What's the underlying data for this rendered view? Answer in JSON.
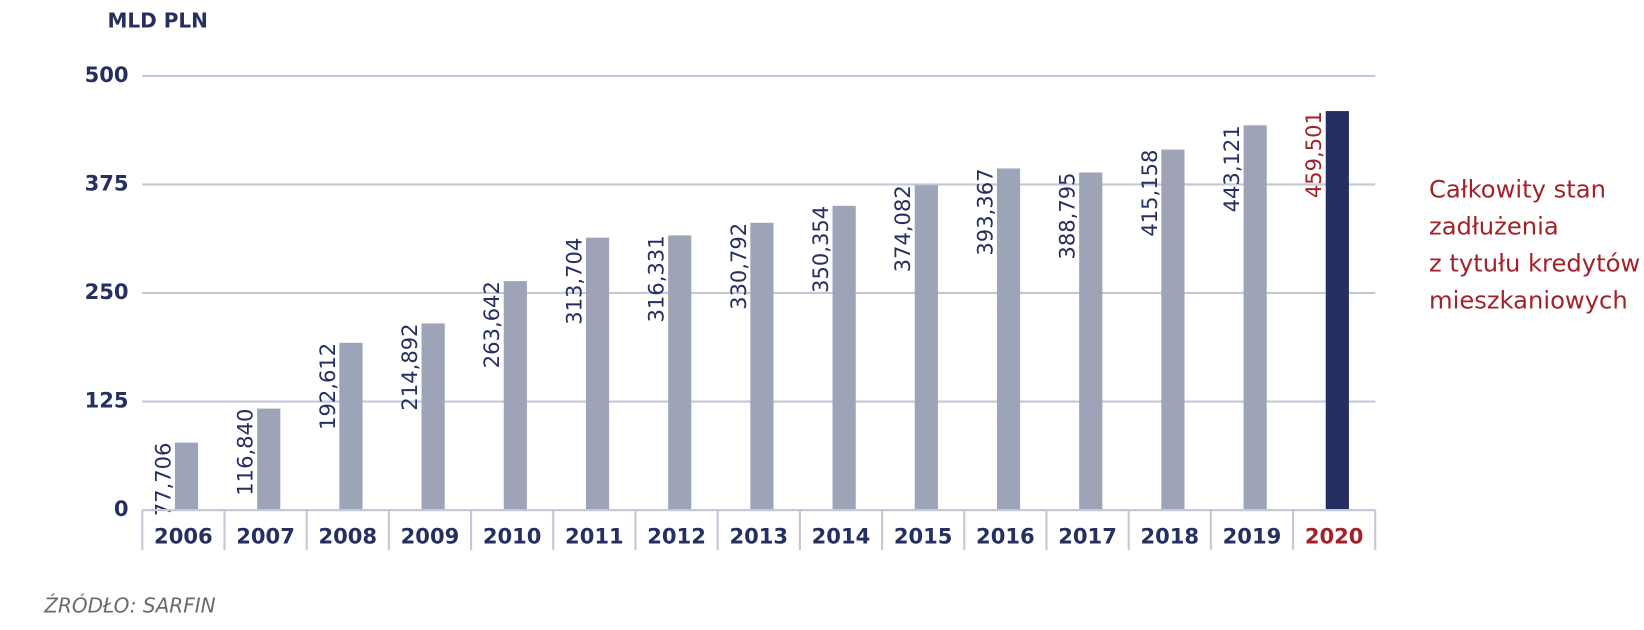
{
  "chart_data": {
    "type": "bar",
    "y_label": "MLD PLN",
    "categories": [
      "2006",
      "2007",
      "2008",
      "2009",
      "2010",
      "2011",
      "2012",
      "2013",
      "2014",
      "2015",
      "2016",
      "2017",
      "2018",
      "2019",
      "2020"
    ],
    "values": [
      77.706,
      116.84,
      192.612,
      214.892,
      263.642,
      313.704,
      316.331,
      330.792,
      350.354,
      374.082,
      393.367,
      388.795,
      415.158,
      443.121,
      459.501
    ],
    "value_labels": [
      "77,706",
      "116,840",
      "192,612",
      "214,892",
      "263,642",
      "313,704",
      "316,331",
      "330,792",
      "350,354",
      "374,082",
      "393,367",
      "388,795",
      "415,158",
      "443,121",
      "459,501"
    ],
    "colors": [
      "#9ea4b8",
      "#9ea4b8",
      "#9ea4b8",
      "#9ea4b8",
      "#9ea4b8",
      "#9ea4b8",
      "#9ea4b8",
      "#9ea4b8",
      "#9ea4b8",
      "#9ea4b8",
      "#9ea4b8",
      "#9ea4b8",
      "#9ea4b8",
      "#9ea4b8",
      "#262f61"
    ],
    "label_colors": [
      "#262f61",
      "#262f61",
      "#262f61",
      "#262f61",
      "#262f61",
      "#262f61",
      "#262f61",
      "#262f61",
      "#262f61",
      "#262f61",
      "#262f61",
      "#262f61",
      "#262f61",
      "#262f61",
      "#a3222a"
    ],
    "ylim": [
      0,
      500
    ],
    "yticks": [
      0,
      125,
      250,
      375,
      500
    ],
    "grid": true,
    "annotation": [
      "Całkowity stan",
      "zadłużenia",
      "z tytułu kredytów",
      "mieszkaniowych"
    ],
    "source": "ŹRÓDŁO: SARFIN"
  }
}
